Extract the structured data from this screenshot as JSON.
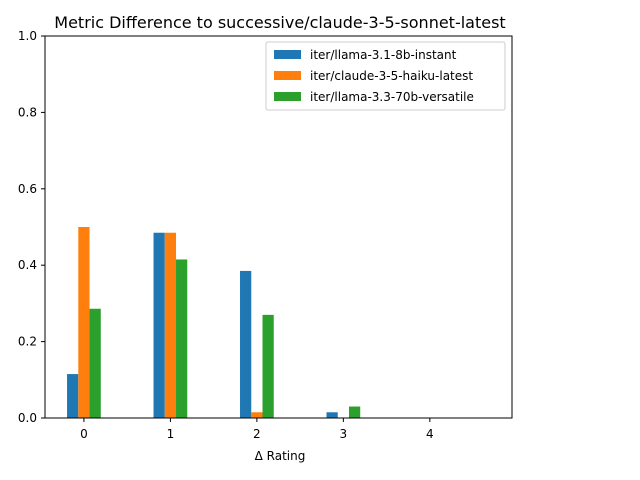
{
  "chart_data": {
    "type": "bar",
    "title": "Metric Difference to successive/claude-3-5-sonnet-latest",
    "xlabel": "Δ Rating",
    "ylabel": "",
    "categories": [
      "0",
      "1",
      "2",
      "3",
      "4"
    ],
    "x": [
      0,
      1,
      2,
      3,
      4
    ],
    "xlim": [
      -0.45,
      4.95
    ],
    "ylim": [
      0,
      1.0
    ],
    "yticks": [
      "0.0",
      "0.2",
      "0.4",
      "0.6",
      "0.8",
      "1.0"
    ],
    "ytick_values": [
      0,
      0.2,
      0.4,
      0.6,
      0.8,
      1.0
    ],
    "grid": false,
    "legend_position": "top-right",
    "series": [
      {
        "name": "iter/llama-3.1-8b-instant",
        "color": "#1f77b4",
        "values": [
          0.115,
          0.485,
          0.385,
          0.015,
          0.0
        ]
      },
      {
        "name": "iter/claude-3-5-haiku-latest",
        "color": "#ff7f0e",
        "values": [
          0.5,
          0.485,
          0.015,
          0.0,
          0.0
        ]
      },
      {
        "name": "iter/llama-3.3-70b-versatile",
        "color": "#2ca02c",
        "values": [
          0.286,
          0.415,
          0.27,
          0.03,
          0.0
        ]
      }
    ]
  }
}
